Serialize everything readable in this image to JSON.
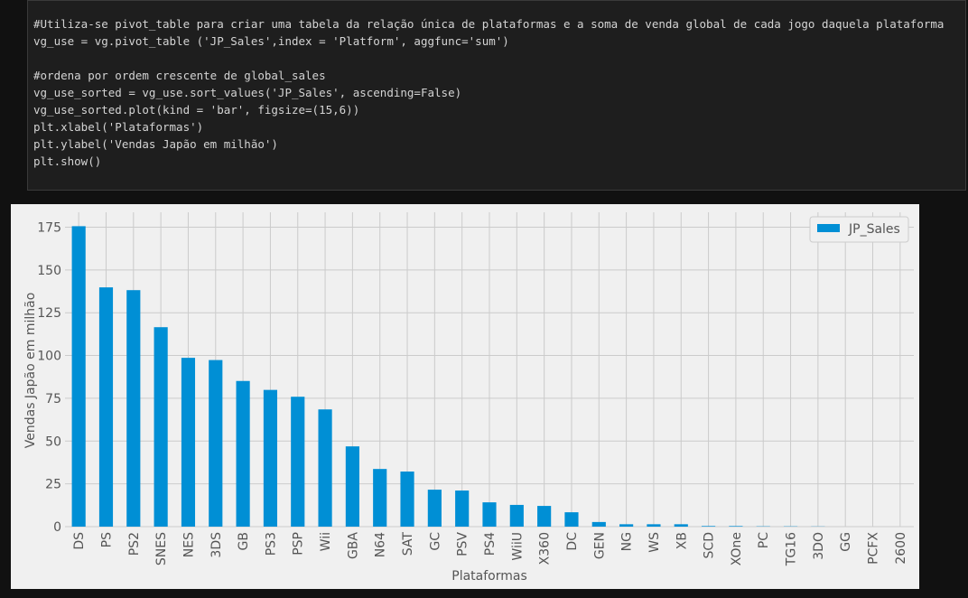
{
  "code": {
    "blocks": [
      [
        "#Utiliza-se pivot_table para criar uma tabela da relação única de plataformas e a soma de venda global de cada jogo daquela plataforma",
        "vg_use = vg.pivot_table ('JP_Sales',index = 'Platform', aggfunc='sum')"
      ],
      [
        "#ordena por ordem crescente de global_sales",
        "vg_use_sorted = vg_use.sort_values('JP_Sales', ascending=False)",
        "vg_use_sorted.plot(kind = 'bar', figsize=(15,6))",
        "plt.xlabel('Plataformas')",
        "plt.ylabel('Vendas Japão em milhão')",
        "plt.show()"
      ]
    ]
  },
  "chart_data": {
    "type": "bar",
    "x_label": "Plataformas",
    "y_label": "Vendas Japão em milhão",
    "categories": [
      "DS",
      "PS",
      "PS2",
      "SNES",
      "NES",
      "3DS",
      "GB",
      "PS3",
      "PSP",
      "Wii",
      "GBA",
      "N64",
      "SAT",
      "GC",
      "PSV",
      "PS4",
      "WiiU",
      "X360",
      "DC",
      "GEN",
      "NG",
      "WS",
      "XB",
      "SCD",
      "XOne",
      "PC",
      "TG16",
      "3DO",
      "GG",
      "PCFX",
      "2600"
    ],
    "series": [
      {
        "name": "JP_Sales",
        "color": "#008fd5",
        "values": [
          175.57,
          139.82,
          138.2,
          116.55,
          98.65,
          97.35,
          85.12,
          79.9,
          75.9,
          68.5,
          46.9,
          33.7,
          32.2,
          21.6,
          21.1,
          14.2,
          12.7,
          12.1,
          8.4,
          2.7,
          1.4,
          1.4,
          1.4,
          0.36,
          0.34,
          0.17,
          0.16,
          0.1,
          0.0,
          0.0,
          0.0
        ]
      }
    ],
    "ylim": [
      0,
      183.7
    ],
    "yticks": [
      0,
      25,
      50,
      75,
      100,
      125,
      150,
      175
    ],
    "grid": true,
    "legend": "upper right"
  }
}
